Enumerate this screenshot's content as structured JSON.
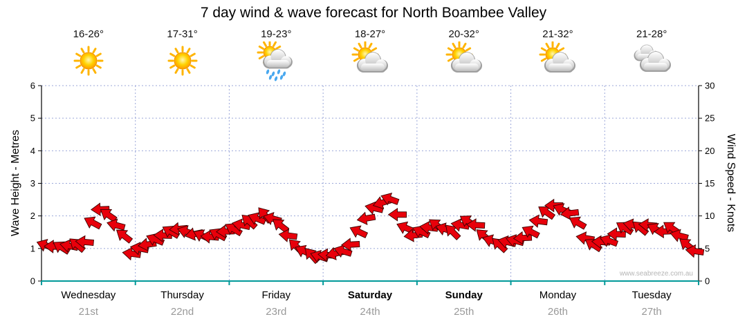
{
  "title": "7 day wind & wave forecast for North Boambee Valley",
  "watermark": "www.seabreeze.com.au",
  "days": [
    {
      "name": "Wednesday",
      "date": "21st",
      "temp": "16-26°",
      "icon": "sunny",
      "bold": false
    },
    {
      "name": "Thursday",
      "date": "22nd",
      "temp": "17-31°",
      "icon": "sunny",
      "bold": false
    },
    {
      "name": "Friday",
      "date": "23rd",
      "temp": "19-23°",
      "icon": "sun-showers",
      "bold": false
    },
    {
      "name": "Saturday",
      "date": "24th",
      "temp": "18-27°",
      "icon": "partly-cloudy",
      "bold": true
    },
    {
      "name": "Sunday",
      "date": "25th",
      "temp": "20-32°",
      "icon": "partly-cloudy",
      "bold": true
    },
    {
      "name": "Monday",
      "date": "26th",
      "temp": "21-32°",
      "icon": "partly-cloudy",
      "bold": false
    },
    {
      "name": "Tuesday",
      "date": "27th",
      "temp": "21-28°",
      "icon": "cloudy",
      "bold": false
    }
  ],
  "colors": {
    "arrow_red": "#e8000b",
    "arrow_outline": "#3a0000",
    "grid_blue": "#9ba7d9",
    "axis_teal": "#009999",
    "axis_black": "#000000",
    "date_gray": "#999999",
    "watermark_gray": "#b5b5b5"
  },
  "chart_data": {
    "type": "scatter",
    "subtype": "wind-direction-arrows",
    "title": "7 day wind & wave forecast for North Boambee Valley",
    "x_unit": "days",
    "n_days": 7,
    "points_per_day": 12,
    "grid": "dotted",
    "left_axis": {
      "label": "Wave Height - Metres",
      "range": [
        0,
        6
      ],
      "ticks": [
        0,
        1,
        2,
        3,
        4,
        5,
        6
      ]
    },
    "right_axis": {
      "label": "Wind Speed - Knots",
      "range": [
        0,
        30
      ],
      "ticks": [
        0,
        5,
        10,
        15,
        20,
        25,
        30
      ]
    },
    "x_categories": [
      "Wednesday 21st",
      "Thursday 22nd",
      "Friday 23rd",
      "Saturday 24th",
      "Sunday 25th",
      "Monday 26th",
      "Tuesday 27th"
    ],
    "wind_speed_knots": [
      5.5,
      5.3,
      5.2,
      5.4,
      5.6,
      6.0,
      9.0,
      11.0,
      10.2,
      8.6,
      7.0,
      4.2,
      5.0,
      5.6,
      6.4,
      7.0,
      7.6,
      8.0,
      7.6,
      7.2,
      7.0,
      6.8,
      7.2,
      7.6,
      8.0,
      8.6,
      9.2,
      9.6,
      10.2,
      9.6,
      8.6,
      7.0,
      5.4,
      4.6,
      4.0,
      3.8,
      4.0,
      4.2,
      4.6,
      5.6,
      7.6,
      9.6,
      11.2,
      12.0,
      12.6,
      10.2,
      8.2,
      7.0,
      7.6,
      8.2,
      8.6,
      8.0,
      7.6,
      8.6,
      9.2,
      8.6,
      7.0,
      6.2,
      5.6,
      6.0,
      6.2,
      6.6,
      7.6,
      9.2,
      10.6,
      11.6,
      11.0,
      10.4,
      9.0,
      6.6,
      5.6,
      6.0,
      6.2,
      7.2,
      8.2,
      8.6,
      8.2,
      8.6,
      8.0,
      7.6,
      8.2,
      7.0,
      5.6,
      4.6
    ],
    "arrow_angles_deg": [
      200,
      182,
      212,
      192,
      220,
      185,
      208,
      178,
      215,
      195,
      218,
      188,
      190,
      172,
      202,
      182,
      210,
      175,
      198,
      168,
      205,
      185,
      208,
      178,
      210,
      192,
      222,
      202,
      230,
      195,
      218,
      188,
      225,
      205,
      228,
      198,
      185,
      167,
      197,
      177,
      205,
      170,
      193,
      163,
      200,
      180,
      203,
      173,
      205,
      187,
      217,
      197,
      225,
      190,
      213,
      183,
      220,
      200,
      223,
      193,
      195,
      177,
      207,
      187,
      215,
      180,
      203,
      173,
      210,
      190,
      213,
      183,
      200,
      182,
      212,
      192,
      220,
      185,
      208,
      178,
      215,
      195,
      218,
      188
    ]
  }
}
